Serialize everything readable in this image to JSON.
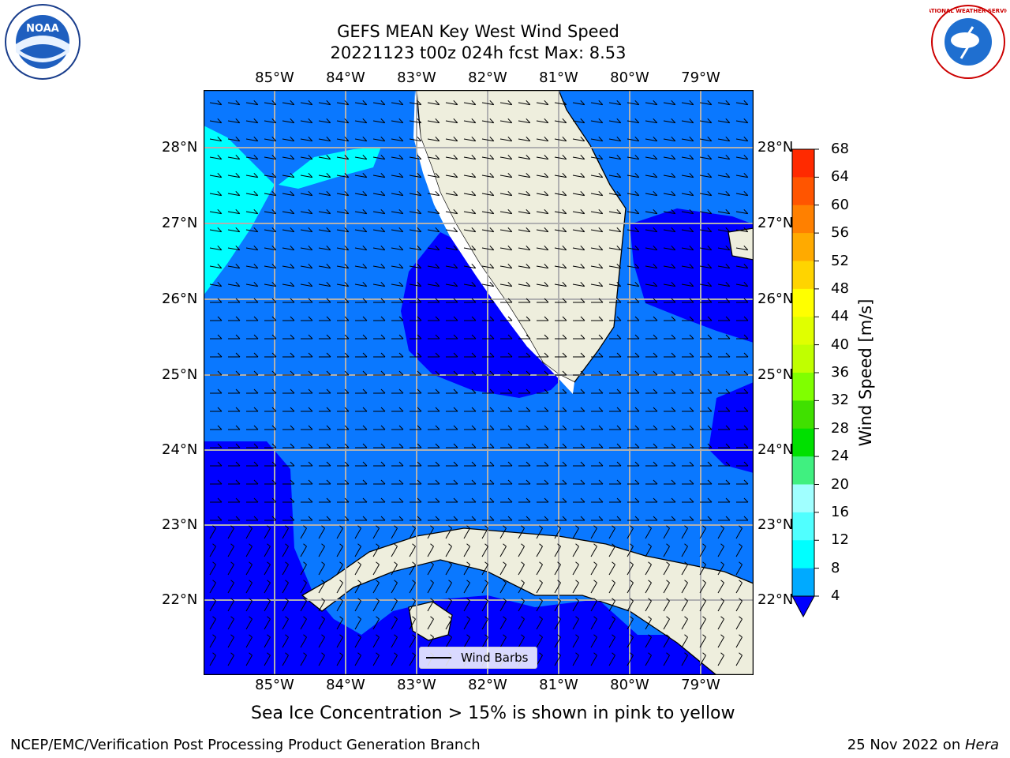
{
  "title_line1": "GEFS MEAN Key West Wind Speed",
  "title_line2": "20221123 t00z 024h fcst   Max: 8.53",
  "lon_labels": [
    "85°W",
    "84°W",
    "83°W",
    "82°W",
    "81°W",
    "80°W",
    "79°W"
  ],
  "lat_labels": [
    "28°N",
    "27°N",
    "26°N",
    "25°N",
    "24°N",
    "23°N",
    "22°N"
  ],
  "colorbar": {
    "label": "Wind Speed [m/s]",
    "ticks": [
      "68",
      "64",
      "60",
      "56",
      "52",
      "48",
      "44",
      "40",
      "36",
      "32",
      "28",
      "24",
      "20",
      "16",
      "12",
      "8",
      "4"
    ],
    "colors": [
      "#ff0000",
      "#ff2a00",
      "#ff5500",
      "#ff8000",
      "#ffaa00",
      "#ffd400",
      "#ffff00",
      "#e0ff00",
      "#c0ff00",
      "#80ff00",
      "#40e000",
      "#00e000",
      "#40f080",
      "#a0ffff",
      "#50ffff",
      "#00ffff",
      "#00aaff",
      "#0066ff"
    ]
  },
  "legend_label": "Wind Barbs",
  "sea_ice_note": "Sea Ice Concentration > 15% is shown in pink to yellow",
  "footer_left": "NCEP/EMC/Verification Post Processing Product Generation Branch",
  "footer_date": "25 Nov 2022 on ",
  "footer_host": "Hera",
  "logos": {
    "left": {
      "name": "noaa-logo",
      "text": "NOAA"
    },
    "right": {
      "name": "nws-logo",
      "text": "NATIONAL WEATHER SERVICE"
    }
  },
  "map_colors": {
    "ocean_mid": "#0a78ff",
    "ocean_low": "#0000ff",
    "ocean_high": "#00ffff",
    "land": "#eeeedd"
  }
}
